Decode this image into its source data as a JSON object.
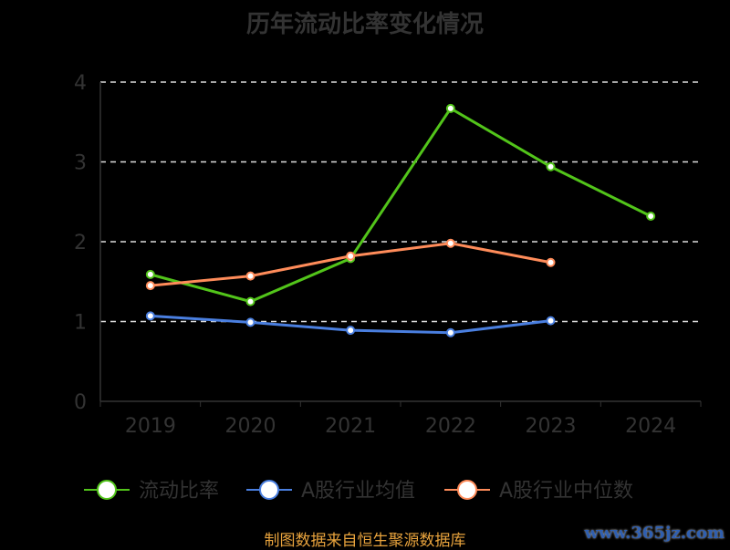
{
  "chart_data": {
    "type": "line",
    "title": "历年流动比率变化情况",
    "categories": [
      "2019",
      "2020",
      "2021",
      "2022",
      "2023",
      "2024"
    ],
    "ylim": [
      0,
      4
    ],
    "yticks": [
      "0",
      "1",
      "2",
      "3",
      "4"
    ],
    "grid": true,
    "legend_position": "bottom",
    "series": [
      {
        "name": "流动比率",
        "color": "#52c41a",
        "values": [
          1.59,
          1.25,
          1.79,
          3.67,
          2.94,
          2.32
        ]
      },
      {
        "name": "A股行业均值",
        "color": "#4a7fe0",
        "values": [
          1.07,
          0.99,
          0.89,
          0.86,
          1.01,
          null
        ]
      },
      {
        "name": "A股行业中位数",
        "color": "#ff8c5a",
        "values": [
          1.45,
          1.57,
          1.82,
          1.98,
          1.74,
          null
        ]
      }
    ]
  },
  "source": "制图数据来自恒生聚源数据库",
  "watermark": "www.365jz.com"
}
